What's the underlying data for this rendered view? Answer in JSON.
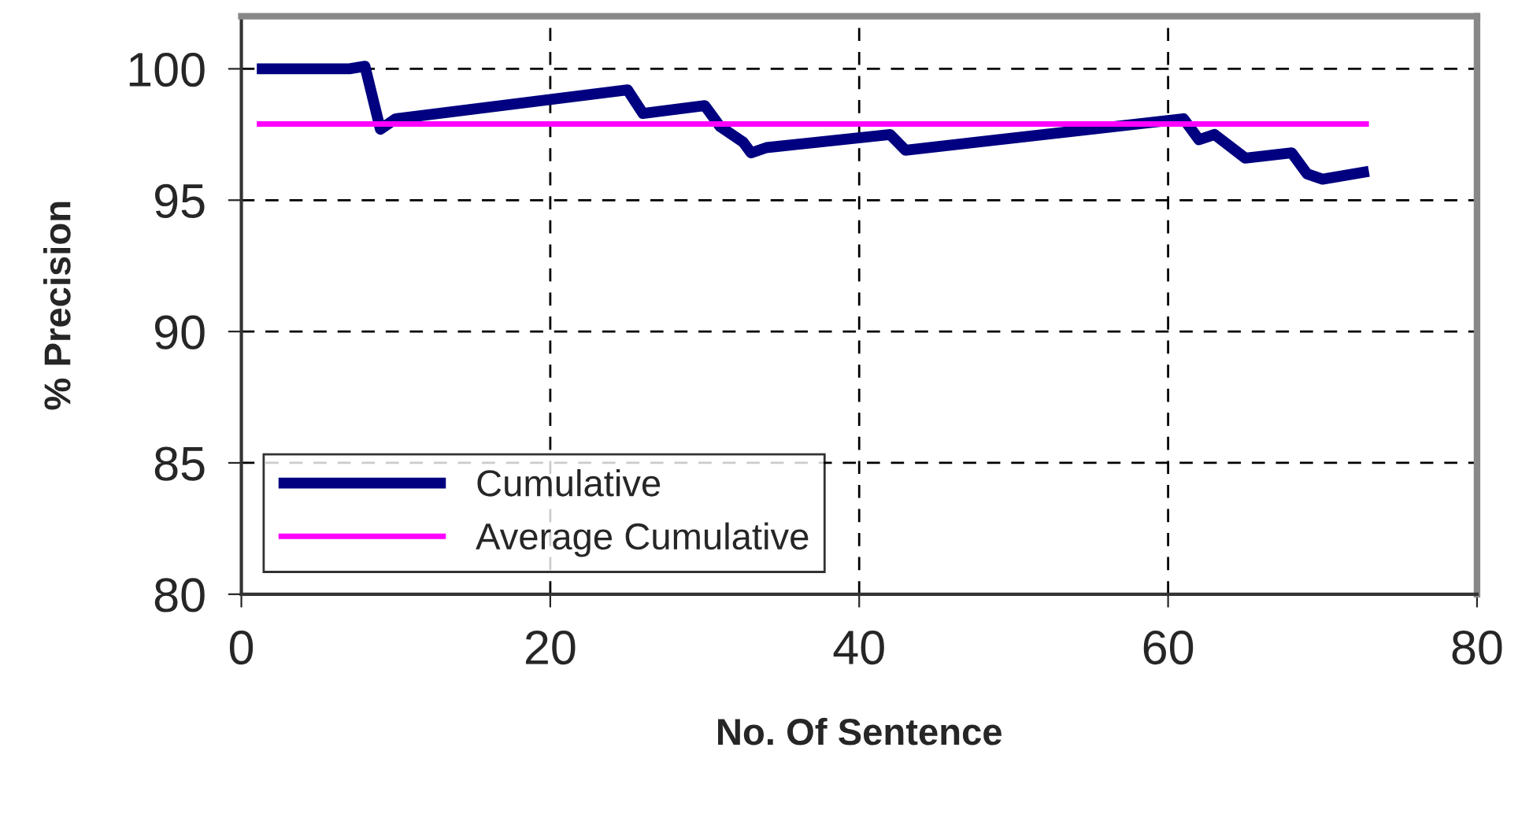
{
  "chart_data": {
    "type": "line",
    "xlabel": "No. Of Sentence",
    "ylabel": "% Precision",
    "xlim": [
      0,
      80
    ],
    "xticks": [
      0,
      20,
      40,
      60,
      80
    ],
    "ylim": [
      80,
      102
    ],
    "yticks": [
      80,
      85,
      90,
      95,
      100
    ],
    "grid": true,
    "legend": "bottom left",
    "marker": "none",
    "series": [
      {
        "name": "Cumulative",
        "color": "#000080",
        "x": [
          1,
          7,
          8,
          9,
          10,
          25,
          26,
          30,
          31,
          32.5,
          33,
          34,
          42,
          43,
          61,
          62,
          63,
          65,
          68,
          69,
          70,
          73
        ],
        "values": [
          100,
          100,
          100.1,
          97.7,
          98.1,
          99.2,
          98.3,
          98.6,
          97.8,
          97.2,
          96.8,
          97.0,
          97.5,
          96.9,
          98.1,
          97.3,
          97.5,
          96.6,
          96.8,
          96.0,
          95.8,
          96.1
        ]
      },
      {
        "name": "Average Cumulative",
        "color": "#ff00ff",
        "x": [
          1,
          73
        ],
        "values": [
          97.9,
          97.9
        ]
      }
    ]
  }
}
